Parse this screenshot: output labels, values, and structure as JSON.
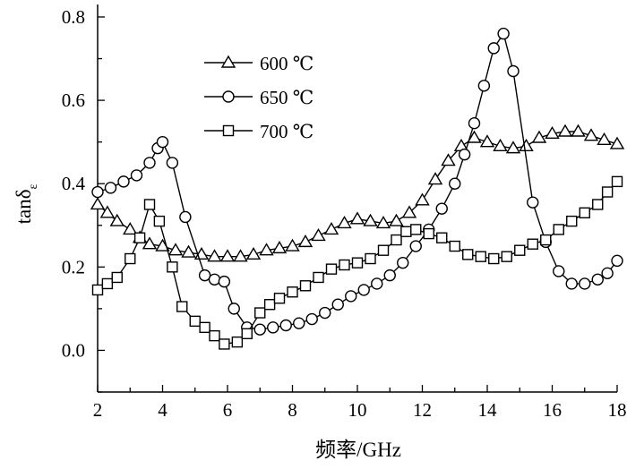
{
  "chart_data": {
    "type": "line",
    "title": "",
    "xlabel": "频率/GHz",
    "ylabel_main": "tanδ",
    "ylabel_sub": "ε",
    "xlim": [
      2,
      18
    ],
    "ylim": [
      -0.1,
      0.83
    ],
    "xticks": [
      "2",
      "4",
      "6",
      "8",
      "10",
      "12",
      "14",
      "16",
      "18"
    ],
    "xtick_values": [
      2,
      4,
      6,
      8,
      10,
      12,
      14,
      16,
      18
    ],
    "yticks": [
      "0.0",
      "0.2",
      "0.4",
      "0.6",
      "0.8"
    ],
    "ytick_values": [
      0,
      0.2,
      0.4,
      0.6,
      0.8
    ],
    "grid": false,
    "legend_position": "top-left",
    "series": [
      {
        "name": "600 ℃",
        "marker": "triangle",
        "x": [
          2.0,
          2.3,
          2.6,
          3.0,
          3.3,
          3.6,
          4.0,
          4.4,
          4.8,
          5.2,
          5.6,
          6.0,
          6.4,
          6.8,
          7.2,
          7.6,
          8.0,
          8.4,
          8.8,
          9.2,
          9.6,
          10.0,
          10.4,
          10.8,
          11.2,
          11.6,
          12.0,
          12.4,
          12.8,
          13.2,
          13.6,
          14.0,
          14.4,
          14.8,
          15.2,
          15.6,
          16.0,
          16.4,
          16.8,
          17.2,
          17.6,
          18.0
        ],
        "y": [
          0.35,
          0.33,
          0.31,
          0.29,
          0.27,
          0.255,
          0.25,
          0.24,
          0.235,
          0.23,
          0.225,
          0.225,
          0.225,
          0.23,
          0.24,
          0.245,
          0.25,
          0.26,
          0.275,
          0.29,
          0.305,
          0.315,
          0.31,
          0.305,
          0.31,
          0.33,
          0.36,
          0.41,
          0.455,
          0.49,
          0.51,
          0.5,
          0.49,
          0.485,
          0.49,
          0.51,
          0.52,
          0.525,
          0.525,
          0.515,
          0.505,
          0.495
        ]
      },
      {
        "name": "650 ℃",
        "marker": "circle",
        "x": [
          2.0,
          2.4,
          2.8,
          3.2,
          3.6,
          3.85,
          4.0,
          4.3,
          4.7,
          5.3,
          5.6,
          5.9,
          6.2,
          6.6,
          7.0,
          7.4,
          7.8,
          8.2,
          8.6,
          9.0,
          9.4,
          9.8,
          10.2,
          10.6,
          11.0,
          11.4,
          11.8,
          12.2,
          12.6,
          13.0,
          13.3,
          13.6,
          13.9,
          14.2,
          14.5,
          14.8,
          15.4,
          15.8,
          16.2,
          16.6,
          17.0,
          17.4,
          17.7,
          18.0
        ],
        "y": [
          0.38,
          0.39,
          0.405,
          0.42,
          0.45,
          0.485,
          0.5,
          0.45,
          0.32,
          0.18,
          0.17,
          0.165,
          0.1,
          0.055,
          0.05,
          0.055,
          0.06,
          0.065,
          0.075,
          0.09,
          0.11,
          0.13,
          0.145,
          0.16,
          0.18,
          0.21,
          0.25,
          0.29,
          0.34,
          0.4,
          0.47,
          0.545,
          0.635,
          0.725,
          0.76,
          0.67,
          0.355,
          0.26,
          0.19,
          0.16,
          0.16,
          0.17,
          0.185,
          0.215
        ]
      },
      {
        "name": "700 ℃",
        "marker": "square",
        "x": [
          2.0,
          2.3,
          2.6,
          3.0,
          3.3,
          3.6,
          3.9,
          4.3,
          4.6,
          5.0,
          5.3,
          5.6,
          5.9,
          6.3,
          6.6,
          7.0,
          7.3,
          7.6,
          8.0,
          8.4,
          8.8,
          9.2,
          9.6,
          10.0,
          10.4,
          10.8,
          11.2,
          11.5,
          11.8,
          12.2,
          12.6,
          13.0,
          13.4,
          13.8,
          14.2,
          14.6,
          15.0,
          15.4,
          15.8,
          16.2,
          16.6,
          17.0,
          17.4,
          17.7,
          18.0
        ],
        "y": [
          0.145,
          0.16,
          0.175,
          0.22,
          0.27,
          0.35,
          0.31,
          0.2,
          0.105,
          0.07,
          0.055,
          0.035,
          0.015,
          0.02,
          0.04,
          0.09,
          0.11,
          0.125,
          0.14,
          0.155,
          0.175,
          0.195,
          0.205,
          0.21,
          0.22,
          0.24,
          0.265,
          0.285,
          0.29,
          0.28,
          0.27,
          0.25,
          0.23,
          0.225,
          0.22,
          0.225,
          0.24,
          0.255,
          0.265,
          0.29,
          0.31,
          0.33,
          0.35,
          0.38,
          0.405
        ]
      }
    ]
  }
}
